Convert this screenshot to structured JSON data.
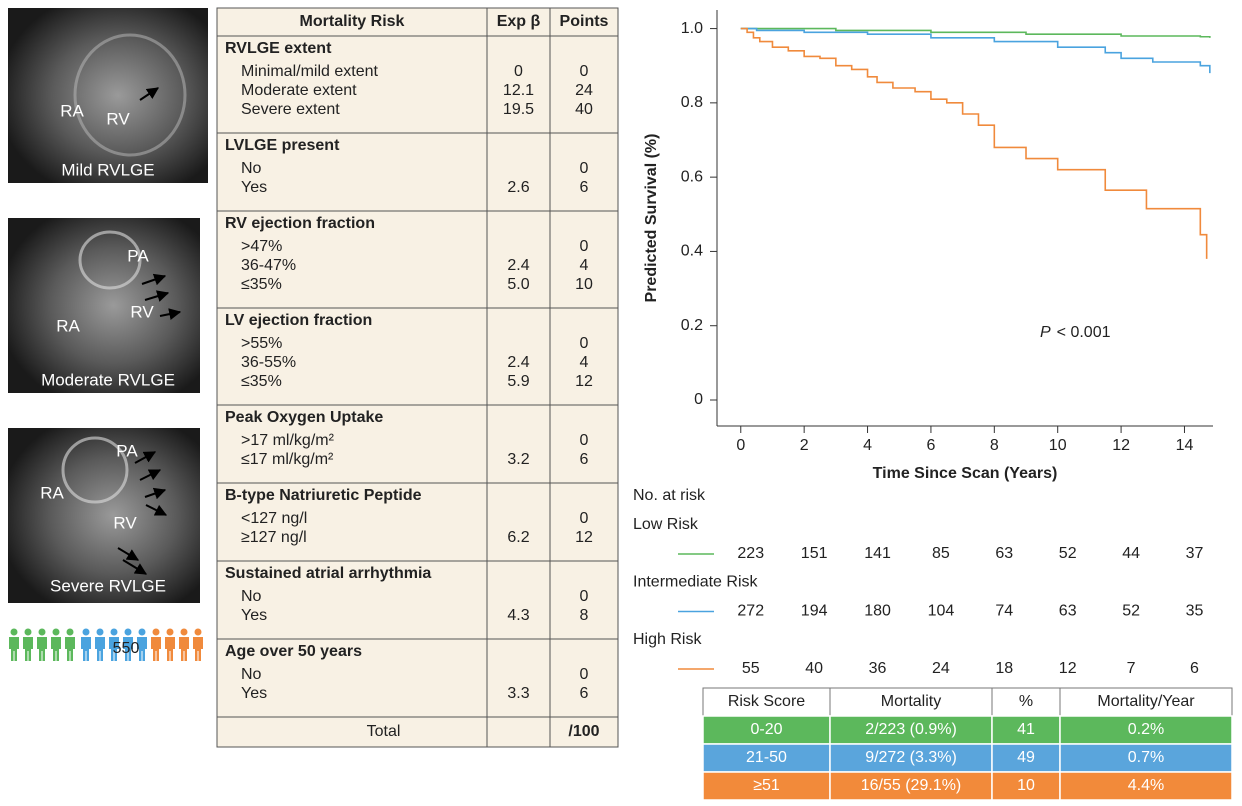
{
  "images": [
    {
      "labels": [
        "RA",
        "RV"
      ],
      "caption": "Mild RVLGE"
    },
    {
      "labels": [
        "PA",
        "RA",
        "RV"
      ],
      "caption": "Moderate RVLGE"
    },
    {
      "labels": [
        "PA",
        "RA",
        "RV"
      ],
      "caption": "Severe RVLGE"
    }
  ],
  "population": "550",
  "risk_table": {
    "header": [
      "Mortality Risk",
      "Exp β",
      "Points"
    ],
    "sections": [
      {
        "title": "RVLGE extent",
        "rows": [
          {
            "label": "Minimal/mild extent",
            "exp": "0",
            "points": "0"
          },
          {
            "label": "Moderate extent",
            "exp": "12.1",
            "points": "24"
          },
          {
            "label": "Severe extent",
            "exp": "19.5",
            "points": "40"
          }
        ]
      },
      {
        "title": "LVLGE present",
        "rows": [
          {
            "label": "No",
            "points": "0"
          },
          {
            "label": "Yes",
            "exp": "2.6",
            "points": "6"
          }
        ]
      },
      {
        "title": "RV ejection fraction",
        "rows": [
          {
            "label": ">47%",
            "points": "0"
          },
          {
            "label": "36-47%",
            "exp": "2.4",
            "points": "4"
          },
          {
            "label": "≤35%",
            "exp": "5.0",
            "points": "10"
          }
        ]
      },
      {
        "title": "LV ejection fraction",
        "rows": [
          {
            "label": ">55%",
            "points": "0"
          },
          {
            "label": "36-55%",
            "exp": "2.4",
            "points": "4"
          },
          {
            "label": "≤35%",
            "exp": "5.9",
            "points": "12"
          }
        ]
      },
      {
        "title": "Peak Oxygen Uptake",
        "rows": [
          {
            "label": ">17 ml/kg/m²",
            "points": "0"
          },
          {
            "label": "≤17 ml/kg/m²",
            "exp": "3.2",
            "points": "6"
          }
        ]
      },
      {
        "title": "B-type Natriuretic Peptide",
        "rows": [
          {
            "label": "<127 ng/l",
            "points": "0"
          },
          {
            "label": "≥127 ng/l",
            "exp": "6.2",
            "points": "12"
          }
        ]
      },
      {
        "title": "Sustained atrial arrhythmia",
        "rows": [
          {
            "label": "No",
            "points": "0"
          },
          {
            "label": "Yes",
            "exp": "4.3",
            "points": "8"
          }
        ]
      },
      {
        "title": "Age over 50 years",
        "rows": [
          {
            "label": "No",
            "points": "0"
          },
          {
            "label": "Yes",
            "exp": "3.3",
            "points": "6"
          }
        ]
      }
    ],
    "total": {
      "label": "Total",
      "points": "/100"
    }
  },
  "chart_data": {
    "type": "step",
    "x_label": "Time Since Scan (Years)",
    "y_label": "Predicted Survival (%)",
    "annotation_symbol": "P",
    "annotation": "< 0.001",
    "xlim": [
      -0.75,
      14.9
    ],
    "ylim": [
      -0.07,
      1.05
    ],
    "xticks": [
      0,
      2,
      4,
      6,
      8,
      10,
      12,
      14
    ],
    "yticks": [
      0,
      {
        "value": 0.2,
        "label": "0.2"
      },
      {
        "value": 0.4,
        "label": "0.4"
      },
      {
        "value": 0.6,
        "label": "0.6"
      },
      {
        "value": 0.8,
        "label": "0.8"
      },
      {
        "value": 1,
        "label": "1.0"
      }
    ],
    "series": [
      {
        "name": "Low Risk",
        "color": "#5cb85c",
        "x": [
          0,
          3,
          6,
          9,
          12,
          14.5,
          14.8
        ],
        "values": [
          1.0,
          0.995,
          0.99,
          0.985,
          0.98,
          0.978,
          0.975
        ]
      },
      {
        "name": "Intermediate Risk",
        "color": "#4aa3df",
        "x": [
          0,
          0.5,
          2,
          4,
          6,
          8,
          10,
          11.5,
          12,
          13,
          14.5,
          14.8
        ],
        "values": [
          1.0,
          0.995,
          0.99,
          0.985,
          0.975,
          0.965,
          0.95,
          0.935,
          0.92,
          0.91,
          0.9,
          0.88
        ]
      },
      {
        "name": "High Risk",
        "color": "#f08a3c",
        "x": [
          0,
          0.2,
          0.4,
          0.6,
          1,
          1.5,
          2,
          2.5,
          3,
          3.5,
          4,
          4.3,
          4.8,
          5.5,
          6,
          6.5,
          7,
          7.5,
          8,
          9,
          10,
          11.5,
          12.8,
          14.5,
          14.7
        ],
        "values": [
          1.0,
          0.99,
          0.975,
          0.965,
          0.95,
          0.94,
          0.925,
          0.92,
          0.9,
          0.89,
          0.87,
          0.855,
          0.84,
          0.83,
          0.81,
          0.8,
          0.77,
          0.74,
          0.68,
          0.65,
          0.62,
          0.565,
          0.515,
          0.445,
          0.38
        ]
      }
    ]
  },
  "number_at_risk": {
    "title": "No. at risk",
    "counts": [
      [
        223,
        151,
        141,
        85,
        63,
        52,
        44,
        37
      ],
      [
        272,
        194,
        180,
        104,
        74,
        63,
        52,
        35
      ],
      [
        55,
        40,
        36,
        24,
        18,
        12,
        7,
        6
      ]
    ]
  },
  "summary_table": {
    "header": [
      "Risk Score",
      "Mortality",
      "%",
      "Mortality/Year"
    ],
    "rows": [
      {
        "color": "#5cb85c",
        "cells": [
          "0-20",
          "2/223 (0.9%)",
          "41",
          "0.2%"
        ]
      },
      {
        "color": "#5aa5dc",
        "cells": [
          "21-50",
          "9/272 (3.3%)",
          "49",
          "0.7%"
        ]
      },
      {
        "color": "#f28a3a",
        "cells": [
          "≥51",
          "16/55 (29.1%)",
          "10",
          "4.4%"
        ]
      }
    ]
  }
}
